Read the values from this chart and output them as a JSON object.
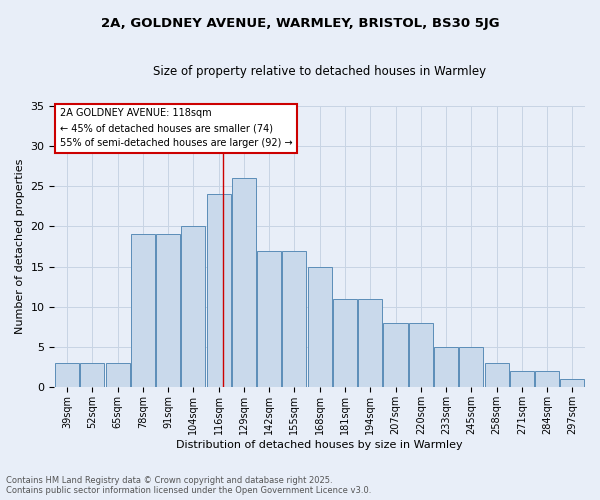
{
  "title1": "2A, GOLDNEY AVENUE, WARMLEY, BRISTOL, BS30 5JG",
  "title2": "Size of property relative to detached houses in Warmley",
  "xlabel": "Distribution of detached houses by size in Warmley",
  "ylabel": "Number of detached properties",
  "bins": [
    "39sqm",
    "52sqm",
    "65sqm",
    "78sqm",
    "91sqm",
    "104sqm",
    "116sqm",
    "129sqm",
    "142sqm",
    "155sqm",
    "168sqm",
    "181sqm",
    "194sqm",
    "207sqm",
    "220sqm",
    "233sqm",
    "245sqm",
    "258sqm",
    "271sqm",
    "284sqm",
    "297sqm"
  ],
  "bar_values": [
    3,
    3,
    3,
    19,
    19,
    20,
    24,
    26,
    17,
    17,
    15,
    11,
    11,
    8,
    8,
    5,
    5,
    3,
    2,
    2,
    1
  ],
  "bar_color": "#c9d9eb",
  "bar_edge_color": "#5b8db8",
  "grid_color": "#c8d4e4",
  "background_color": "#e8eef8",
  "vline_color": "#cc0000",
  "annotation_title": "2A GOLDNEY AVENUE: 118sqm",
  "annotation_line1": "← 45% of detached houses are smaller (74)",
  "annotation_line2": "55% of semi-detached houses are larger (92) →",
  "annotation_box_color": "#ffffff",
  "annotation_box_edge_color": "#cc0000",
  "footer1": "Contains HM Land Registry data © Crown copyright and database right 2025.",
  "footer2": "Contains public sector information licensed under the Open Government Licence v3.0.",
  "ylim": [
    0,
    35
  ],
  "yticks": [
    0,
    5,
    10,
    15,
    20,
    25,
    30,
    35
  ]
}
